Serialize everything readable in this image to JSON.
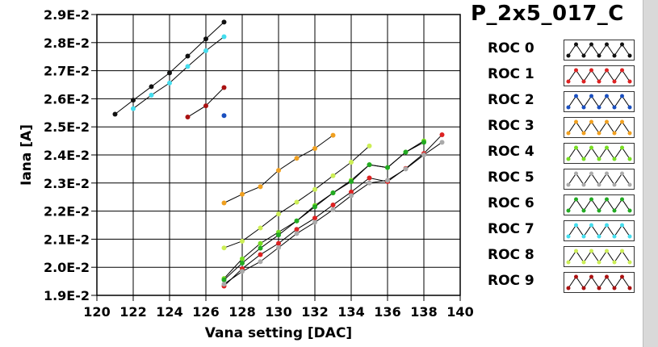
{
  "panel": {
    "title": "P_2x5_017_C"
  },
  "legend": {
    "items": [
      {
        "label": "ROC 0",
        "color": "#111111"
      },
      {
        "label": "ROC 1",
        "color": "#dd2222"
      },
      {
        "label": "ROC 2",
        "color": "#1a4fbf"
      },
      {
        "label": "ROC 3",
        "color": "#f0a020"
      },
      {
        "label": "ROC 4",
        "color": "#77dd22"
      },
      {
        "label": "ROC 5",
        "color": "#aaaaaa"
      },
      {
        "label": "ROC 6",
        "color": "#22aa22"
      },
      {
        "label": "ROC 7",
        "color": "#44ddee"
      },
      {
        "label": "ROC 8",
        "color": "#ccee55"
      },
      {
        "label": "ROC 9",
        "color": "#aa1111"
      }
    ]
  },
  "chart_data": {
    "type": "scatter",
    "title": "",
    "xlabel": "Vana setting [DAC]",
    "ylabel": "Iana [A]",
    "xlim": [
      120,
      140
    ],
    "ylim": [
      0.019,
      0.029
    ],
    "x_ticks": [
      "120",
      "122",
      "124",
      "126",
      "128",
      "130",
      "132",
      "134",
      "136",
      "138",
      "140"
    ],
    "y_ticks": [
      "1.9E-2",
      "2.0E-2",
      "2.1E-2",
      "2.2E-2",
      "2.3E-2",
      "2.4E-2",
      "2.5E-2",
      "2.6E-2",
      "2.7E-2",
      "2.8E-2",
      "2.9E-2"
    ],
    "grid": true,
    "legend_position": "right",
    "series": [
      {
        "name": "ROC 0",
        "color": "#111111",
        "x": [
          121,
          122,
          123,
          124,
          125,
          126,
          127
        ],
        "y": [
          0.02545,
          0.02595,
          0.02643,
          0.02692,
          0.02752,
          0.02813,
          0.02873
        ]
      },
      {
        "name": "ROC 7",
        "color": "#44ddee",
        "x": [
          122,
          123,
          124,
          125,
          126,
          127
        ],
        "y": [
          0.02565,
          0.02613,
          0.02656,
          0.02715,
          0.02771,
          0.02821
        ]
      },
      {
        "name": "ROC 9",
        "color": "#aa1111",
        "x": [
          125,
          126,
          127
        ],
        "y": [
          0.02535,
          0.02575,
          0.0264
        ]
      },
      {
        "name": "ROC 2",
        "color": "#1a4fbf",
        "x": [
          127
        ],
        "y": [
          0.0254
        ]
      },
      {
        "name": "ROC 3",
        "color": "#f0a020",
        "x": [
          127,
          128,
          129,
          130,
          131,
          132,
          133
        ],
        "y": [
          0.02229,
          0.0226,
          0.02287,
          0.02345,
          0.02388,
          0.02423,
          0.0247
        ]
      },
      {
        "name": "ROC 8",
        "color": "#ccee55",
        "x": [
          127,
          128,
          129,
          130,
          131,
          132,
          133,
          134,
          135
        ],
        "y": [
          0.02069,
          0.02093,
          0.0214,
          0.0219,
          0.02232,
          0.02277,
          0.02326,
          0.02374,
          0.02432
        ]
      },
      {
        "name": "ROC 4",
        "color": "#77dd22",
        "x": [
          127,
          128,
          129,
          130,
          131,
          132,
          133,
          134,
          135,
          136,
          137,
          138
        ],
        "y": [
          0.0196,
          0.0203,
          0.02085,
          0.02125,
          0.02165,
          0.0222,
          0.02265,
          0.0231,
          0.02365,
          0.02355,
          0.0241,
          0.0245
        ]
      },
      {
        "name": "ROC 6",
        "color": "#22aa22",
        "x": [
          127,
          128,
          129,
          130,
          131,
          132,
          133,
          134,
          135,
          136,
          137,
          138
        ],
        "y": [
          0.01955,
          0.02015,
          0.02068,
          0.02115,
          0.02165,
          0.02215,
          0.02265,
          0.02305,
          0.02365,
          0.02355,
          0.0241,
          0.02445
        ]
      },
      {
        "name": "ROC 1",
        "color": "#dd2222",
        "x": [
          127,
          128,
          129,
          130,
          131,
          132,
          133,
          134,
          135,
          136,
          137,
          138,
          139
        ],
        "y": [
          0.01933,
          0.01995,
          0.02045,
          0.02085,
          0.02135,
          0.02175,
          0.02222,
          0.02268,
          0.02318,
          0.02305,
          0.02352,
          0.02405,
          0.02472
        ]
      },
      {
        "name": "ROC 5",
        "color": "#aaaaaa",
        "x": [
          127,
          128,
          129,
          130,
          131,
          132,
          133,
          134,
          135,
          136,
          137,
          138,
          139
        ],
        "y": [
          0.0194,
          0.01985,
          0.0202,
          0.0207,
          0.0212,
          0.0216,
          0.02205,
          0.02255,
          0.023,
          0.0231,
          0.0235,
          0.024,
          0.02445
        ]
      }
    ]
  }
}
